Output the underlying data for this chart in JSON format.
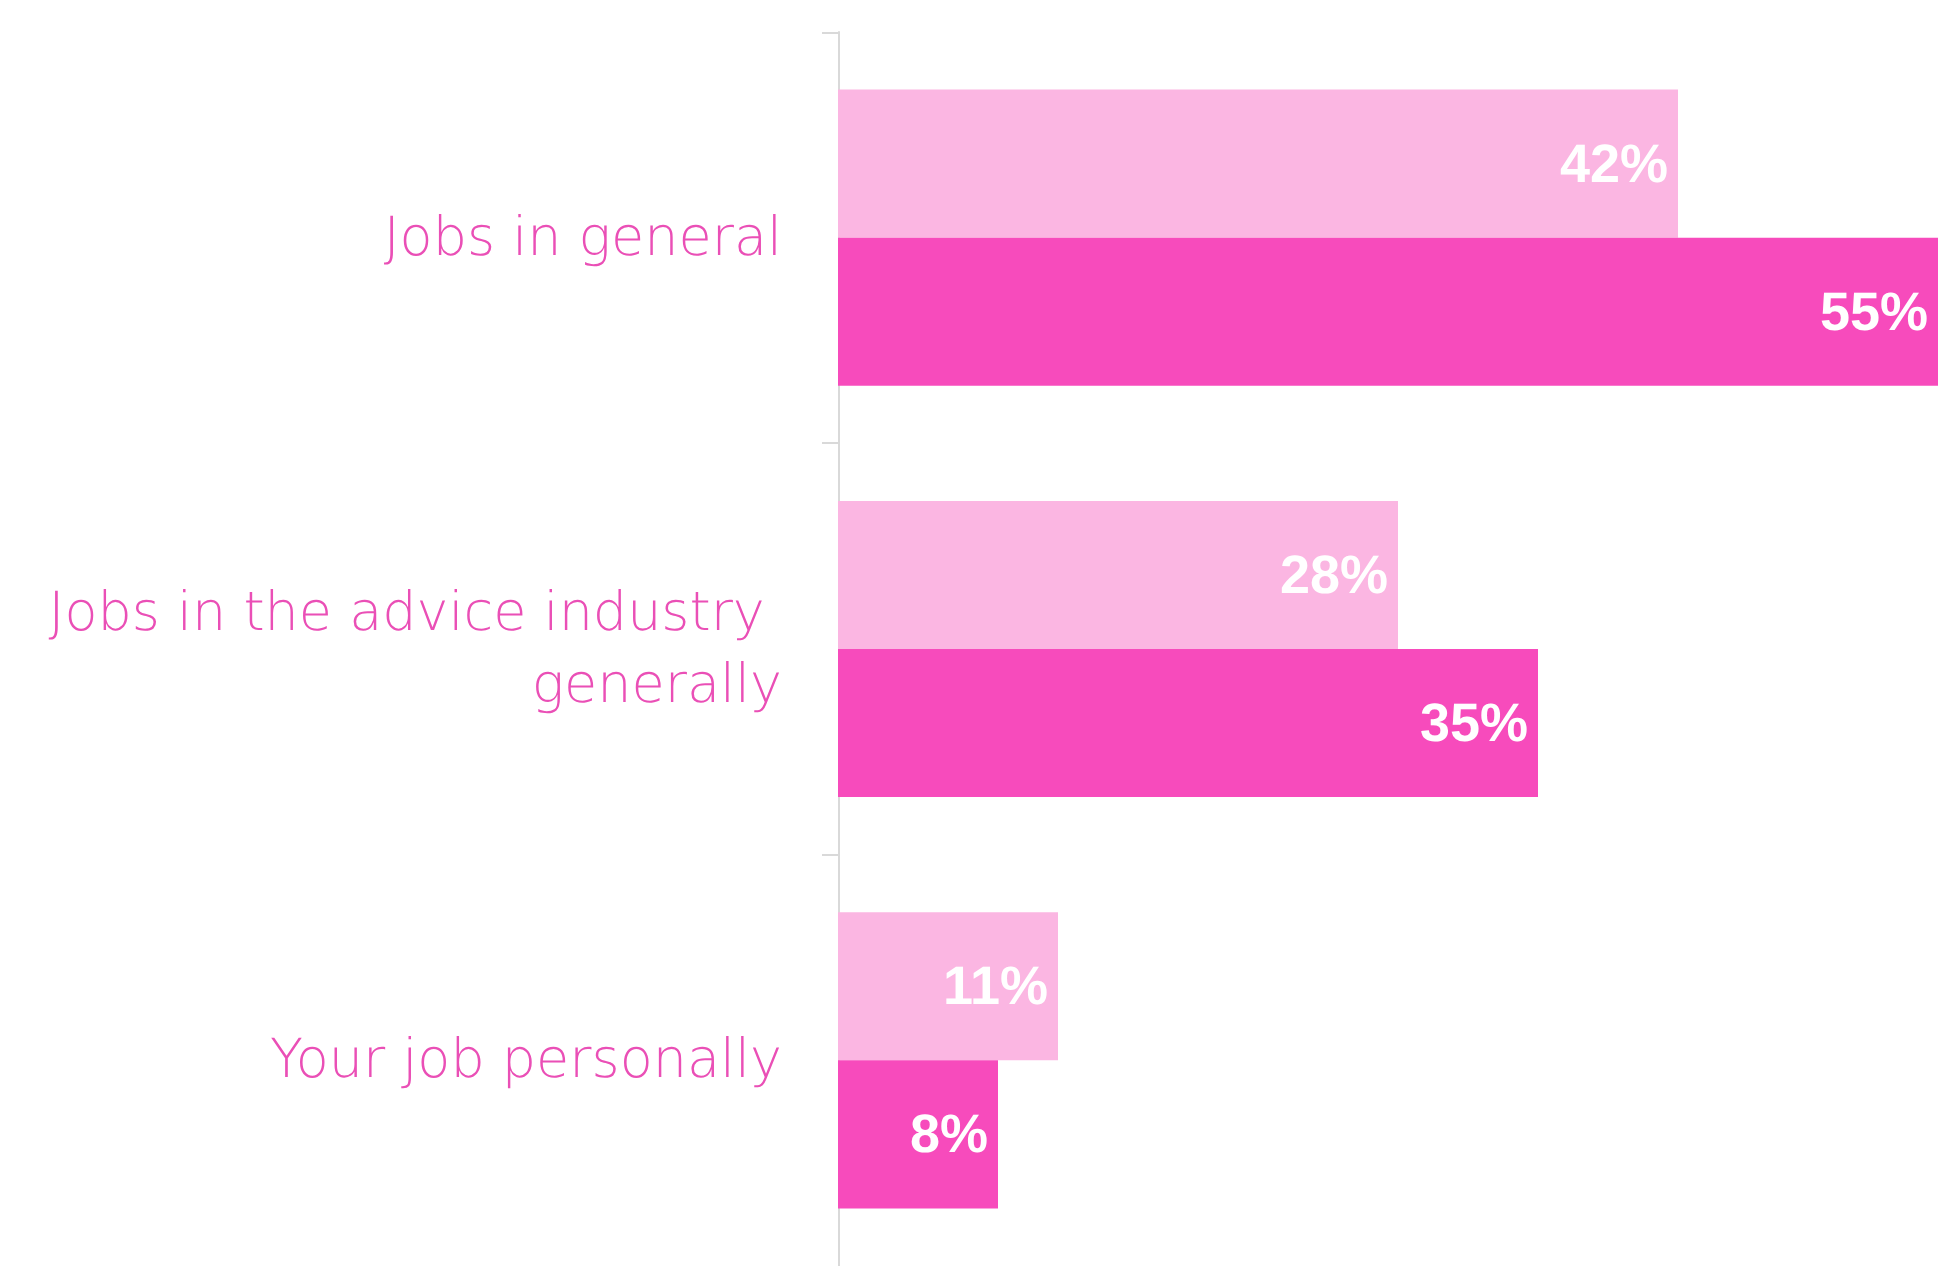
{
  "chart_data": {
    "type": "bar",
    "orientation": "horizontal",
    "categories": [
      "Jobs in general",
      "Jobs in the advice industry generally",
      "Your job personally"
    ],
    "series": [
      {
        "color": "#fbb6e2",
        "values": [
          42,
          28,
          11
        ],
        "value_labels": [
          "42%",
          "28%",
          "11%"
        ]
      },
      {
        "color": "#f74bbc",
        "values": [
          55,
          35,
          8
        ],
        "value_labels": [
          "55%",
          "35%",
          "8%"
        ]
      }
    ],
    "grid": false
  }
}
